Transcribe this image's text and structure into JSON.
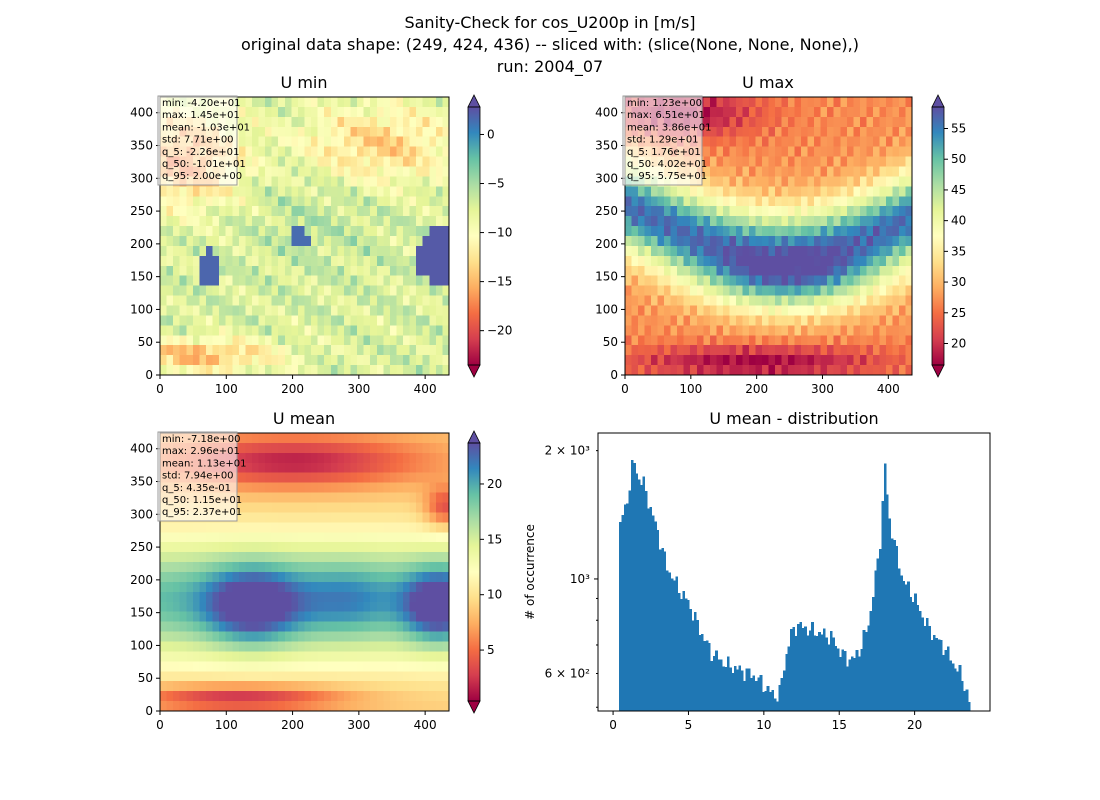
{
  "figure": {
    "title_line1": "Sanity-Check for cos_U200p in [m/s]",
    "title_line2": "original data shape: (249, 424, 436) -- sliced with: (slice(None, None, None),)",
    "title_line3": "run: 2004_07"
  },
  "colors": {
    "spectral": [
      "#9e0142",
      "#d53e4f",
      "#f46d43",
      "#fdae61",
      "#fee08b",
      "#ffffbf",
      "#e6f598",
      "#abdda4",
      "#66c2a5",
      "#3288bd",
      "#5e4fa2"
    ],
    "hist_bar": "#1f77b4"
  },
  "chart_data": [
    {
      "type": "heatmap",
      "title": "U min",
      "colormap": "Spectral",
      "x_range": [
        0,
        436
      ],
      "y_range": [
        0,
        424
      ],
      "x_ticks": [
        "0",
        "100",
        "200",
        "300",
        "400"
      ],
      "y_ticks": [
        "0",
        "50",
        "100",
        "150",
        "200",
        "250",
        "300",
        "350",
        "400"
      ],
      "colorbar_range": [
        -23.5,
        2.8
      ],
      "colorbar_ticks": [
        {
          "value": 0,
          "label": "0"
        },
        {
          "value": -5,
          "label": "−5"
        },
        {
          "value": -10,
          "label": "−10"
        },
        {
          "value": -15,
          "label": "−15"
        },
        {
          "value": -20,
          "label": "−20"
        }
      ],
      "stats": [
        "min: -4.20e+01",
        "max: 1.45e+01",
        "mean: -1.03e+01",
        "std: 7.71e+00",
        "q_5: -2.26e+01",
        "q_50: -1.01e+01",
        "q_95: 2.00e+00"
      ]
    },
    {
      "type": "heatmap",
      "title": "U max",
      "colormap": "Spectral",
      "x_range": [
        0,
        436
      ],
      "y_range": [
        0,
        424
      ],
      "x_ticks": [
        "0",
        "100",
        "200",
        "300",
        "400"
      ],
      "y_ticks": [
        "0",
        "50",
        "100",
        "150",
        "200",
        "250",
        "300",
        "350",
        "400"
      ],
      "colorbar_range": [
        16.5,
        58.5
      ],
      "colorbar_ticks": [
        {
          "value": 20,
          "label": "20"
        },
        {
          "value": 25,
          "label": "25"
        },
        {
          "value": 30,
          "label": "30"
        },
        {
          "value": 35,
          "label": "35"
        },
        {
          "value": 40,
          "label": "40"
        },
        {
          "value": 45,
          "label": "45"
        },
        {
          "value": 50,
          "label": "50"
        },
        {
          "value": 55,
          "label": "55"
        }
      ],
      "stats": [
        "min: 1.23e+00",
        "max: 6.51e+01",
        "mean: 3.86e+01",
        "std: 1.29e+01",
        "q_5: 1.76e+01",
        "q_50: 4.02e+01",
        "q_95: 5.75e+01"
      ]
    },
    {
      "type": "heatmap",
      "title": "U mean",
      "colormap": "Spectral",
      "x_range": [
        0,
        436
      ],
      "y_range": [
        0,
        424
      ],
      "x_ticks": [
        "0",
        "100",
        "200",
        "300",
        "400"
      ],
      "y_ticks": [
        "0",
        "50",
        "100",
        "150",
        "200",
        "250",
        "300",
        "350",
        "400"
      ],
      "colorbar_range": [
        0.4,
        23.7
      ],
      "colorbar_ticks": [
        {
          "value": 5,
          "label": "5"
        },
        {
          "value": 10,
          "label": "10"
        },
        {
          "value": 15,
          "label": "15"
        },
        {
          "value": 20,
          "label": "20"
        }
      ],
      "stats": [
        "min: -7.18e+00",
        "max: 2.96e+01",
        "mean: 1.13e+01",
        "std: 7.94e+00",
        "q_5: 4.35e-01",
        "q_50: 1.15e+01",
        "q_95: 2.37e+01"
      ]
    },
    {
      "type": "bar",
      "title": "U mean - distribution",
      "ylabel": "# of occurrence",
      "yscale": "log",
      "xlim": [
        -1.0,
        25.0
      ],
      "ylim": [
        490,
        2200
      ],
      "x_ticks": [
        "0",
        "5",
        "10",
        "15",
        "20"
      ],
      "y_tick_labels": {
        "y2000": "2 × 10³",
        "y1000": "10³",
        "y600": "6 × 10²"
      },
      "bins": {
        "start": 0.4,
        "end": 23.7,
        "count": 150
      },
      "anchors": [
        [
          0.4,
          1340
        ],
        [
          0.8,
          1450
        ],
        [
          1.0,
          1600
        ],
        [
          1.2,
          1700
        ],
        [
          1.3,
          1950
        ],
        [
          1.6,
          1750
        ],
        [
          2.0,
          1680
        ],
        [
          2.4,
          1500
        ],
        [
          2.8,
          1350
        ],
        [
          3.2,
          1200
        ],
        [
          3.6,
          1060
        ],
        [
          4.0,
          1000
        ],
        [
          4.5,
          930
        ],
        [
          5.0,
          880
        ],
        [
          5.5,
          800
        ],
        [
          6.0,
          730
        ],
        [
          6.5,
          675
        ],
        [
          7.0,
          650
        ],
        [
          7.5,
          630
        ],
        [
          8.0,
          620
        ],
        [
          8.5,
          610
        ],
        [
          9.0,
          600
        ],
        [
          9.5,
          590
        ],
        [
          10.0,
          560
        ],
        [
          10.5,
          540
        ],
        [
          11.0,
          530
        ],
        [
          11.4,
          640
        ],
        [
          11.8,
          740
        ],
        [
          12.2,
          780
        ],
        [
          13.0,
          760
        ],
        [
          14.0,
          740
        ],
        [
          14.5,
          730
        ],
        [
          15.0,
          680
        ],
        [
          15.5,
          650
        ],
        [
          16.0,
          650
        ],
        [
          16.5,
          700
        ],
        [
          17.0,
          800
        ],
        [
          17.4,
          1000
        ],
        [
          17.8,
          1300
        ],
        [
          18.0,
          1900
        ],
        [
          18.3,
          1400
        ],
        [
          18.8,
          1150
        ],
        [
          19.2,
          1000
        ],
        [
          20.0,
          900
        ],
        [
          20.5,
          820
        ],
        [
          21.0,
          760
        ],
        [
          21.5,
          720
        ],
        [
          22.0,
          690
        ],
        [
          22.5,
          640
        ],
        [
          23.0,
          600
        ],
        [
          23.3,
          570
        ],
        [
          23.7,
          500
        ]
      ]
    }
  ]
}
